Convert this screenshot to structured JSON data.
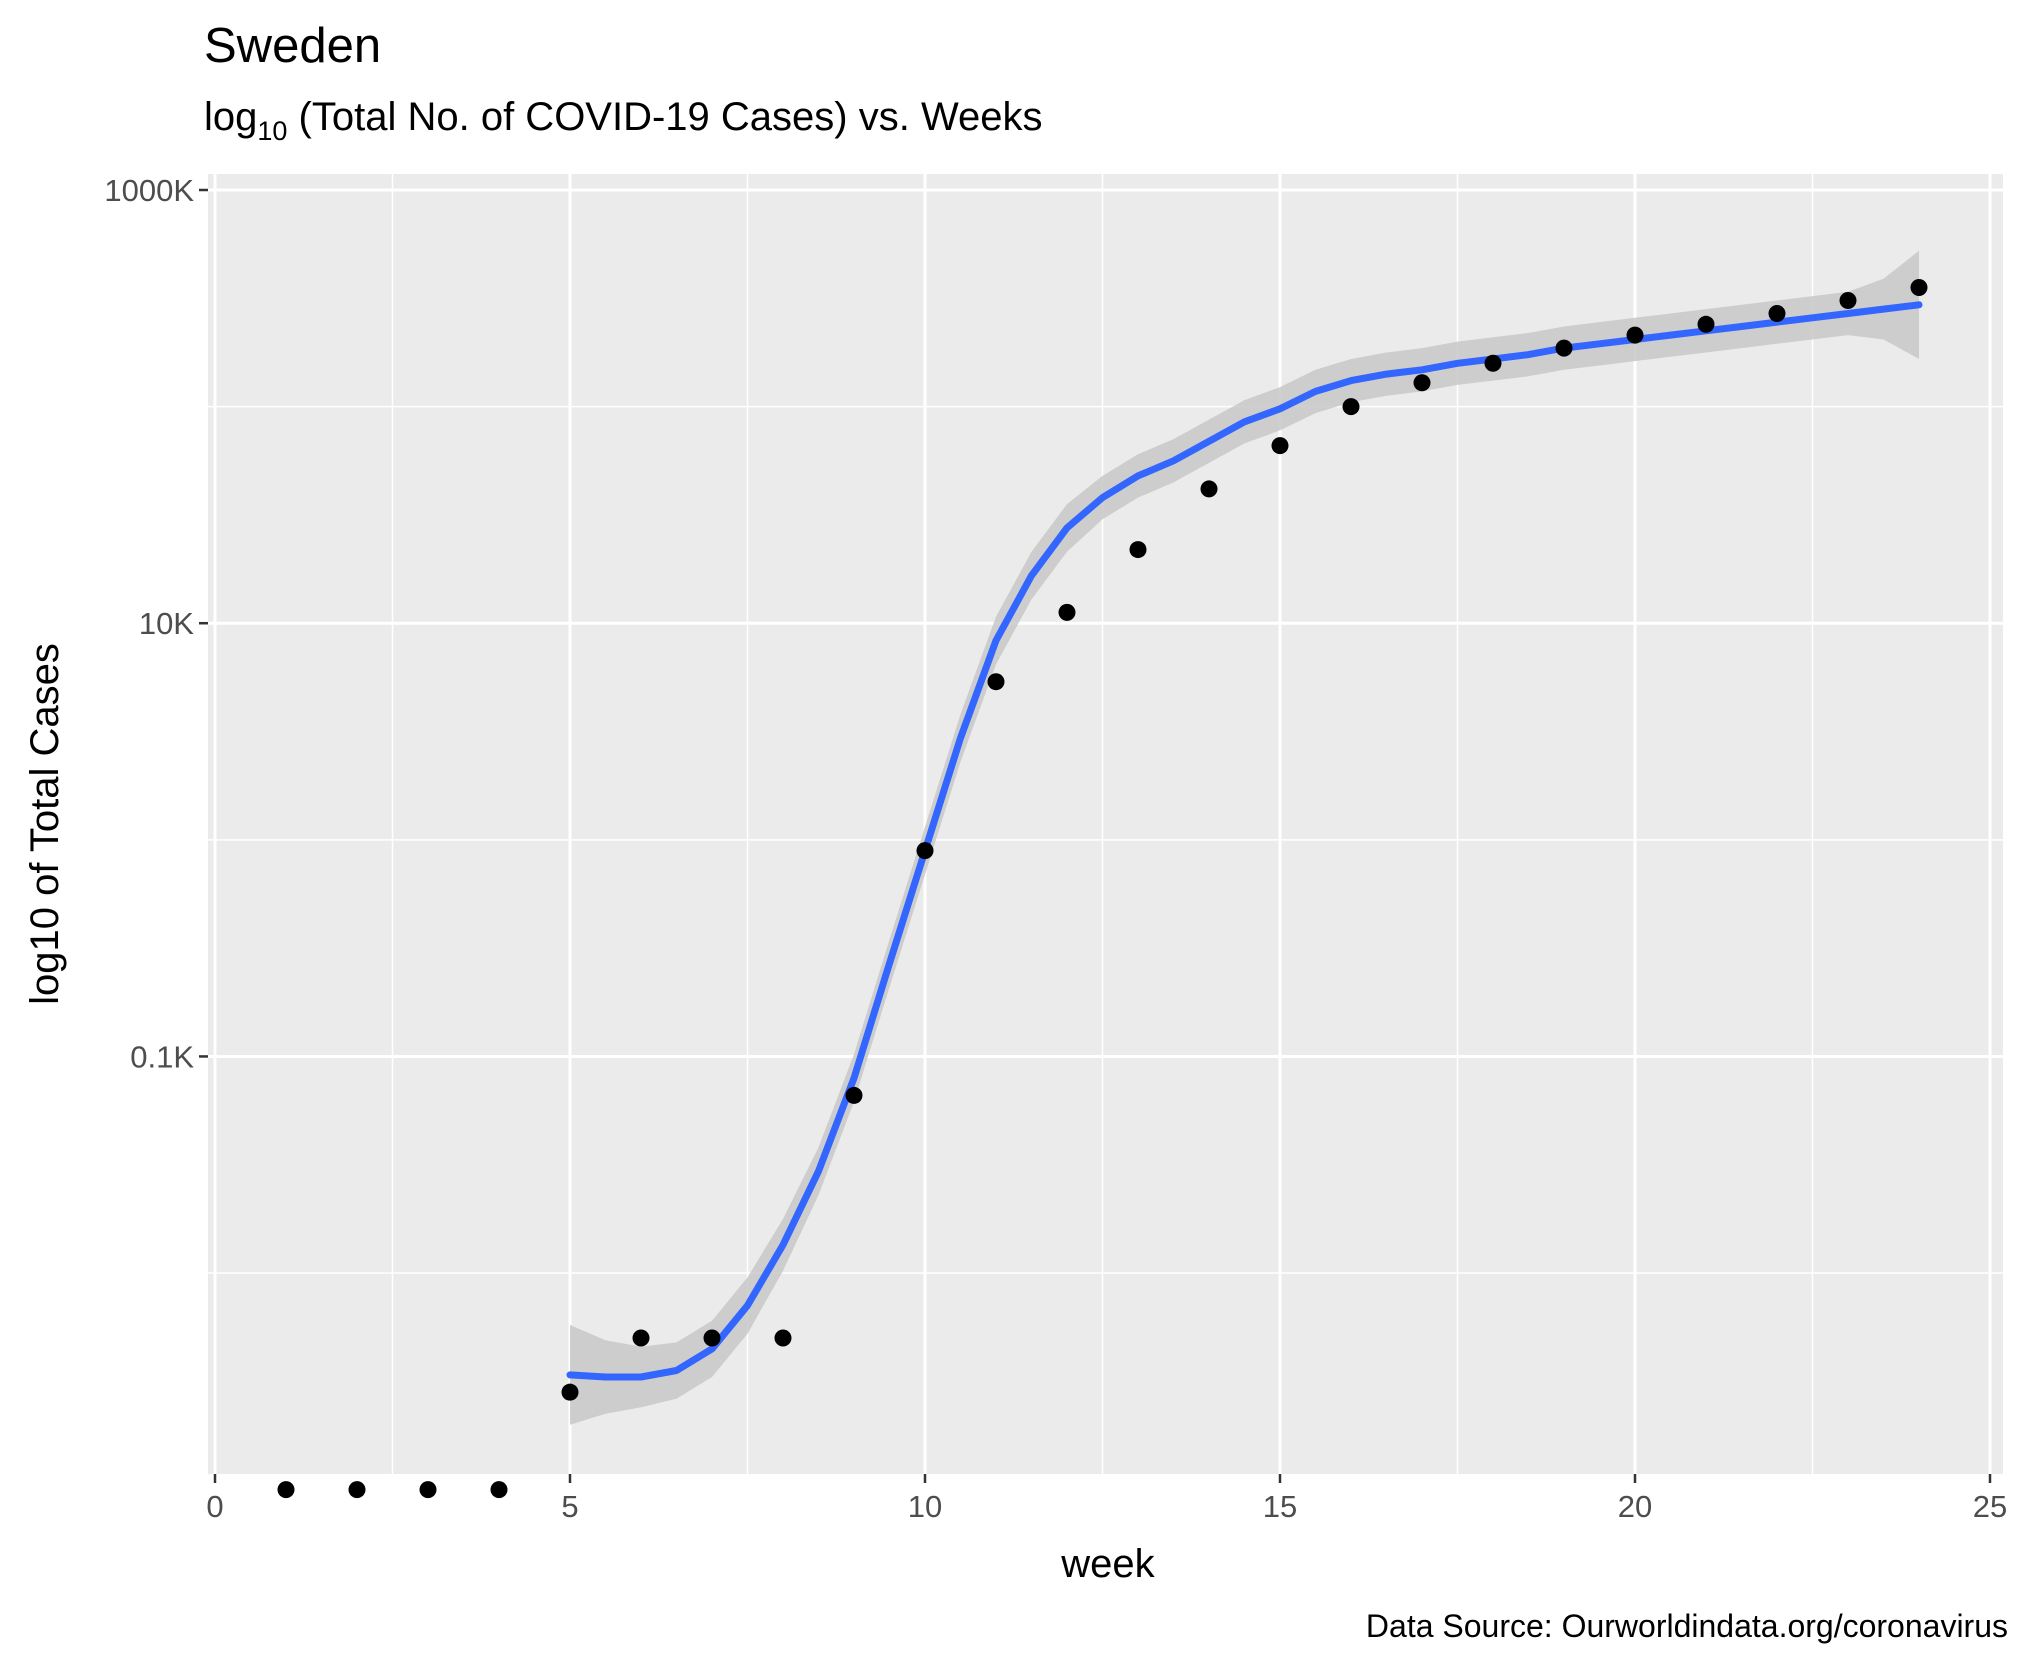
{
  "title": "Sweden",
  "subtitle": {
    "prefix": "log",
    "subscript": "10",
    "rest": " (Total No. of COVID-19 Cases) vs. Weeks"
  },
  "caption": "Data Source: Ourworldindata.org/coronavirus",
  "colors": {
    "panel": "#ebebeb",
    "grid": "#ffffff",
    "points": "#000000",
    "smooth_line": "#3366ff",
    "ribbon": "#c8c8c8"
  },
  "chart_data": {
    "type": "scatter",
    "title": "Sweden",
    "subtitle": "log10 (Total No. of COVID-19 Cases) vs. Weeks",
    "xlabel": "week",
    "ylabel": "log10 of Total Cases",
    "caption": "Data Source: Ourworldindata.org/coronavirus",
    "xlim": [
      0,
      25
    ],
    "ylim_log10": [
      0.1,
      6
    ],
    "y_scale": "log10",
    "grid": true,
    "x_ticks": [
      0,
      5,
      10,
      15,
      20,
      25
    ],
    "x_tick_labels": [
      "0",
      "5",
      "10",
      "15",
      "20",
      "25"
    ],
    "y_ticks_log10": [
      2,
      4,
      6
    ],
    "y_tick_labels": [
      "0.1K",
      "10K",
      "1000K"
    ],
    "points": {
      "x": [
        1,
        2,
        3,
        4,
        5,
        6,
        7,
        8,
        9,
        10,
        11,
        12,
        13,
        14,
        15,
        16,
        17,
        18,
        19,
        20,
        21,
        22,
        23,
        24
      ],
      "log10_y": [
        0.0,
        0.0,
        0.0,
        0.0,
        0.45,
        0.7,
        0.7,
        0.7,
        1.82,
        2.95,
        3.73,
        4.05,
        4.34,
        4.62,
        4.82,
        5.0,
        5.11,
        5.2,
        5.27,
        5.33,
        5.38,
        5.43,
        5.49,
        5.55
      ]
    },
    "smooth_fit": {
      "method": "loess",
      "x": [
        5,
        5.5,
        6,
        6.5,
        7,
        7.5,
        8,
        8.5,
        9,
        9.5,
        10,
        10.5,
        11,
        11.5,
        12,
        12.5,
        13,
        13.5,
        14,
        14.5,
        15,
        15.5,
        16,
        16.5,
        17,
        17.5,
        18,
        18.5,
        19,
        19.5,
        20,
        20.5,
        21,
        21.5,
        22,
        22.5,
        23,
        23.5,
        24
      ],
      "log10_y": [
        0.53,
        0.52,
        0.52,
        0.55,
        0.65,
        0.85,
        1.13,
        1.47,
        1.9,
        2.43,
        2.95,
        3.47,
        3.92,
        4.22,
        4.44,
        4.58,
        4.68,
        4.75,
        4.84,
        4.93,
        4.99,
        5.07,
        5.12,
        5.15,
        5.17,
        5.2,
        5.22,
        5.24,
        5.27,
        5.29,
        5.31,
        5.33,
        5.35,
        5.37,
        5.39,
        5.41,
        5.43,
        5.45,
        5.47
      ],
      "ci_half_width": [
        0.23,
        0.17,
        0.14,
        0.13,
        0.13,
        0.13,
        0.12,
        0.11,
        0.11,
        0.11,
        0.11,
        0.11,
        0.11,
        0.11,
        0.11,
        0.1,
        0.1,
        0.1,
        0.1,
        0.1,
        0.1,
        0.1,
        0.1,
        0.1,
        0.1,
        0.1,
        0.1,
        0.1,
        0.1,
        0.1,
        0.1,
        0.1,
        0.1,
        0.1,
        0.1,
        0.1,
        0.1,
        0.14,
        0.25
      ]
    }
  }
}
